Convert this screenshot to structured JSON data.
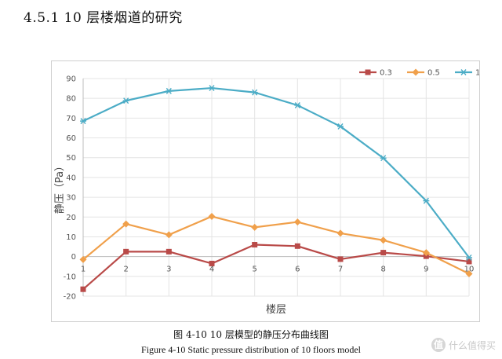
{
  "document": {
    "section_heading": "4.5.1 10 层楼烟道的研究",
    "caption_cn": "图 4-10 10 层模型的静压分布曲线图",
    "caption_en": "Figure 4-10    Static pressure distribution of 10 floors model",
    "watermark": "什么值得买",
    "watermark_badge": "值"
  },
  "chart_data": {
    "type": "line",
    "title": "",
    "xlabel": "楼层",
    "ylabel": "静压（Pa）",
    "x": [
      1,
      2,
      3,
      4,
      5,
      6,
      7,
      8,
      9,
      10
    ],
    "ylim": [
      -20,
      90
    ],
    "yticks": [
      -20,
      -10,
      0,
      10,
      20,
      30,
      40,
      50,
      60,
      70,
      80,
      90
    ],
    "grid": true,
    "legend": "top-right",
    "series": [
      {
        "name": "0.3",
        "color": "#b94a48",
        "marker": "square",
        "values": [
          -16.5,
          2.5,
          2.5,
          -3.5,
          6,
          5.3,
          -1.3,
          2,
          0.2,
          -2.5
        ]
      },
      {
        "name": "0.5",
        "color": "#f0a04b",
        "marker": "diamond",
        "values": [
          -1.5,
          16.5,
          11,
          20.3,
          14.8,
          17.5,
          11.8,
          8.3,
          2,
          -8.7
        ]
      },
      {
        "name": "1",
        "color": "#4bacc6",
        "marker": "star",
        "values": [
          68.5,
          78.8,
          83.7,
          85.2,
          83,
          76.5,
          65.8,
          49.8,
          28.2,
          -0.5
        ]
      }
    ]
  }
}
